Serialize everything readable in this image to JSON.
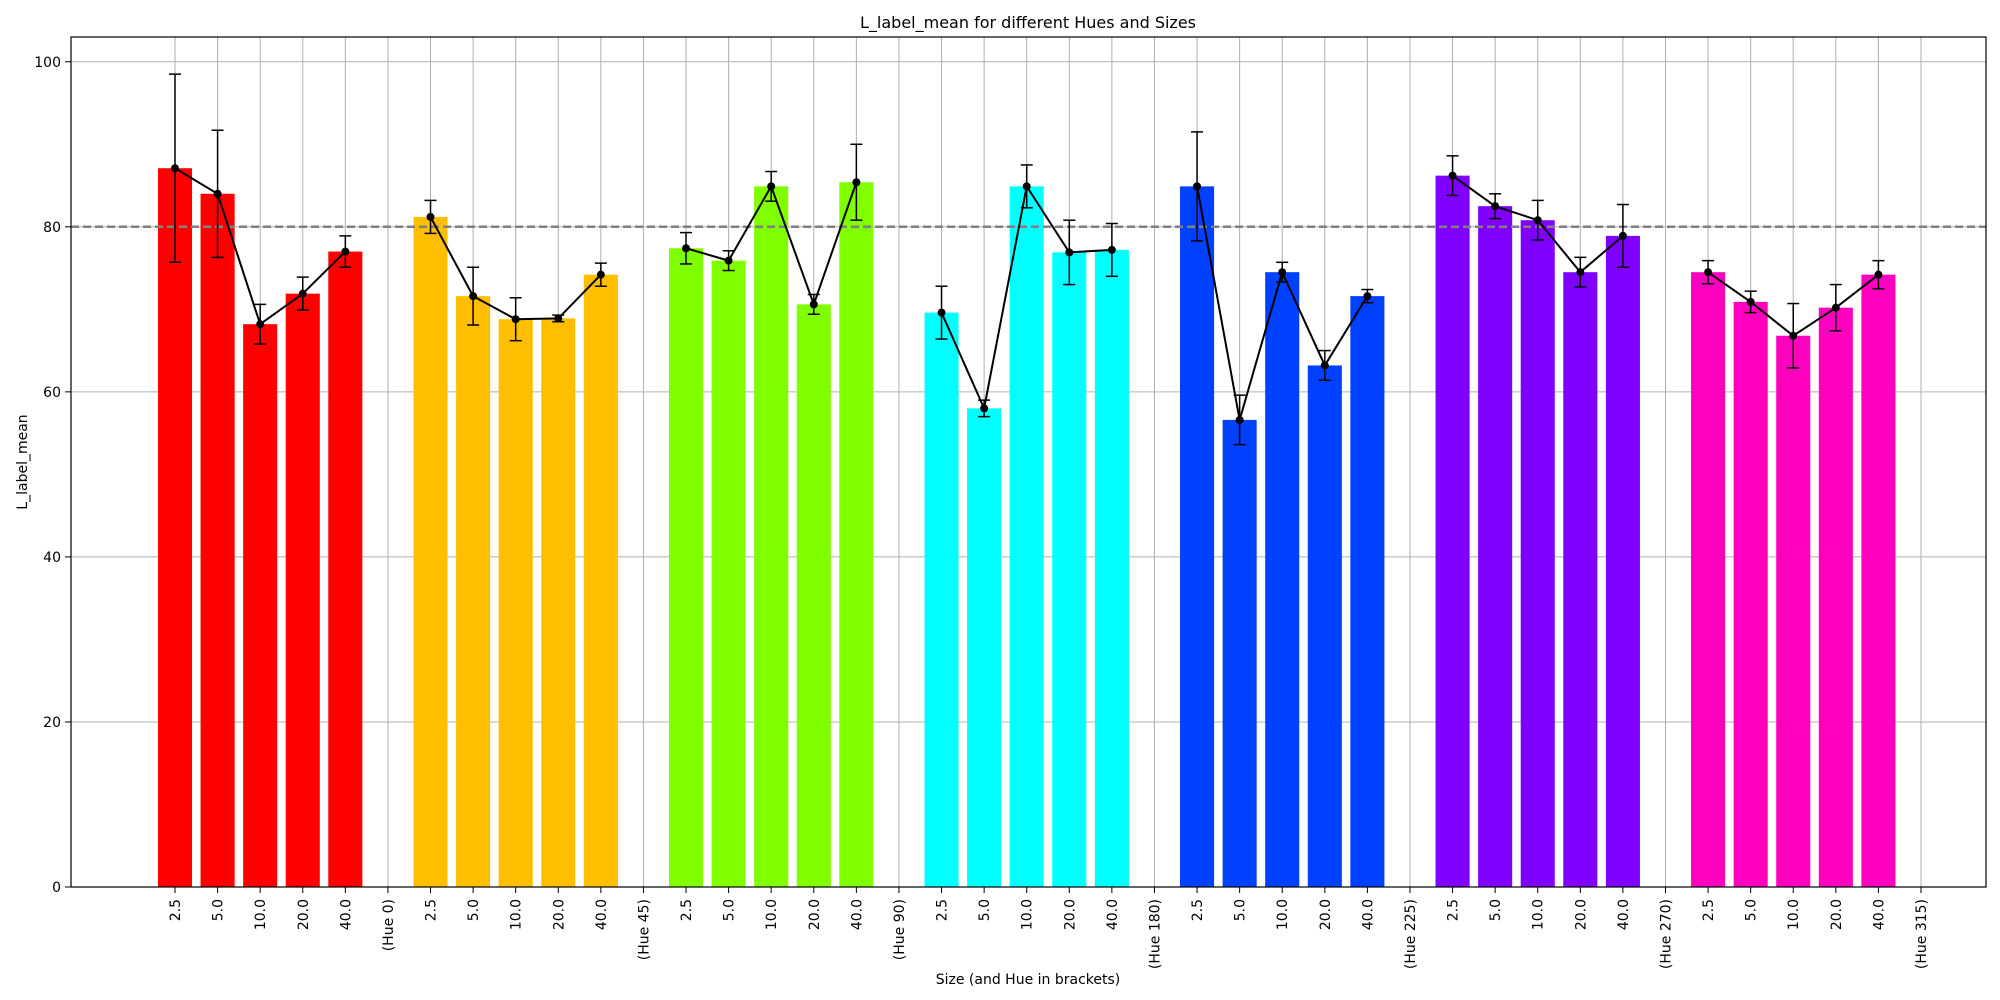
{
  "chart_data": {
    "type": "bar",
    "title": "L_label_mean for different Hues and Sizes",
    "xlabel": "Size (and Hue in brackets)",
    "ylabel": "L_label_mean",
    "ylim": [
      0,
      103
    ],
    "yticks": [
      0,
      20,
      40,
      60,
      80,
      100
    ],
    "grid": true,
    "reference_line": {
      "y": 80,
      "style": "dashed",
      "color": "#808080"
    },
    "line_color": "#000000",
    "groups": [
      {
        "hue_label": "(Hue 0)",
        "color": "#ff0000",
        "sizes": [
          "2.5",
          "5.0",
          "10.0",
          "20.0",
          "40.0"
        ],
        "values": [
          87.1,
          84.0,
          68.2,
          71.9,
          77.0
        ],
        "errors": [
          11.4,
          7.7,
          2.4,
          2.0,
          1.9
        ]
      },
      {
        "hue_label": "(Hue 45)",
        "color": "#ffbf00",
        "sizes": [
          "2.5",
          "5.0",
          "10.0",
          "20.0",
          "40.0"
        ],
        "values": [
          81.2,
          71.6,
          68.8,
          68.9,
          74.2
        ],
        "errors": [
          2.0,
          3.5,
          2.6,
          0.4,
          1.4
        ]
      },
      {
        "hue_label": "(Hue 90)",
        "color": "#80ff00",
        "sizes": [
          "2.5",
          "5.0",
          "10.0",
          "20.0",
          "40.0"
        ],
        "values": [
          77.4,
          75.9,
          84.9,
          70.6,
          85.4
        ],
        "errors": [
          1.9,
          1.2,
          1.8,
          1.2,
          4.6
        ]
      },
      {
        "hue_label": "(Hue 180)",
        "color": "#00ffff",
        "sizes": [
          "2.5",
          "5.0",
          "10.0",
          "20.0",
          "40.0"
        ],
        "values": [
          69.6,
          58.0,
          84.9,
          76.9,
          77.2
        ],
        "errors": [
          3.2,
          1.0,
          2.6,
          3.9,
          3.2
        ]
      },
      {
        "hue_label": "(Hue 225)",
        "color": "#0040ff",
        "sizes": [
          "2.5",
          "5.0",
          "10.0",
          "20.0",
          "40.0"
        ],
        "values": [
          84.9,
          56.6,
          74.5,
          63.2,
          71.6
        ],
        "errors": [
          6.6,
          3.0,
          1.2,
          1.8,
          0.8
        ]
      },
      {
        "hue_label": "(Hue 270)",
        "color": "#8000ff",
        "sizes": [
          "2.5",
          "5.0",
          "10.0",
          "20.0",
          "40.0"
        ],
        "values": [
          86.2,
          82.5,
          80.8,
          74.5,
          78.9
        ],
        "errors": [
          2.4,
          1.5,
          2.4,
          1.8,
          3.8
        ]
      },
      {
        "hue_label": "(Hue 315)",
        "color": "#ff00bf",
        "sizes": [
          "2.5",
          "5.0",
          "10.0",
          "20.0",
          "40.0"
        ],
        "values": [
          74.5,
          70.9,
          66.8,
          70.2,
          74.2
        ],
        "errors": [
          1.4,
          1.3,
          3.9,
          2.8,
          1.7
        ]
      }
    ]
  }
}
